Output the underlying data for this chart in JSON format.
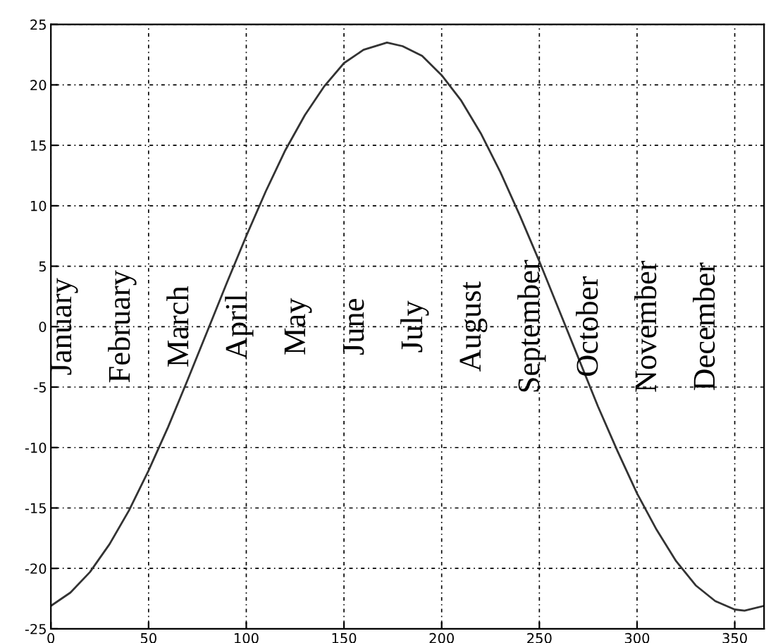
{
  "chart_data": {
    "type": "line",
    "x": [
      0,
      10,
      20,
      30,
      40,
      50,
      60,
      70,
      80,
      90,
      100,
      110,
      120,
      130,
      140,
      150,
      160,
      170,
      172,
      180,
      190,
      200,
      210,
      220,
      230,
      240,
      250,
      260,
      270,
      280,
      290,
      300,
      310,
      320,
      330,
      340,
      350,
      355,
      365
    ],
    "series": [
      {
        "color": "#333333",
        "values": [
          -23.1,
          -22.0,
          -20.3,
          -18.0,
          -15.2,
          -11.9,
          -8.3,
          -4.4,
          -0.4,
          3.6,
          7.5,
          11.2,
          14.6,
          17.5,
          19.9,
          21.8,
          22.9,
          23.4,
          23.5,
          23.2,
          22.4,
          20.8,
          18.7,
          16.0,
          12.8,
          9.2,
          5.4,
          1.4,
          -2.6,
          -6.6,
          -10.3,
          -13.8,
          -16.8,
          -19.4,
          -21.4,
          -22.7,
          -23.4,
          -23.5,
          -23.1
        ]
      }
    ],
    "annotations": [
      "January",
      "February",
      "March",
      "April",
      "May",
      "June",
      "July",
      "August",
      "September",
      "October",
      "November",
      "December"
    ],
    "xlim": [
      0,
      365
    ],
    "ylim": [
      -25,
      25
    ],
    "xticks": [
      0,
      50,
      100,
      150,
      200,
      250,
      300,
      350
    ],
    "yticks": [
      -25,
      -20,
      -15,
      -10,
      -5,
      0,
      5,
      10,
      15,
      20,
      25
    ],
    "grid": true,
    "line_style": "solid",
    "marker": "none"
  }
}
